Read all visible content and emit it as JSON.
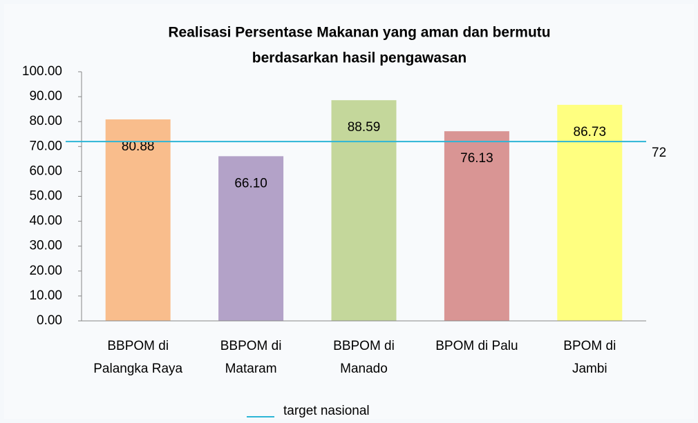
{
  "chart_data": {
    "type": "bar",
    "title": [
      "Realisasi Persentase Makanan yang aman dan bermutu",
      "berdasarkan hasil pengawasan"
    ],
    "categories": [
      [
        "BBPOM di",
        "Palangka Raya"
      ],
      [
        "BBPOM di",
        "Mataram"
      ],
      [
        "BBPOM di",
        "Manado"
      ],
      [
        "BPOM di Palu"
      ],
      [
        "BPOM di",
        "Jambi"
      ]
    ],
    "values": [
      80.88,
      66.1,
      88.59,
      76.13,
      86.73
    ],
    "value_labels": [
      "80.88",
      "66.10",
      "88.59",
      "76.13",
      "86.73"
    ],
    "colors": [
      "#f9bd8c",
      "#b3a2c8",
      "#c4d79b",
      "#d99594",
      "#ffff80"
    ],
    "ylim": [
      0,
      100
    ],
    "yticks": [
      {
        "value": 0,
        "label": "0.00"
      },
      {
        "value": 10,
        "label": "10.00"
      },
      {
        "value": 20,
        "label": "20.00"
      },
      {
        "value": 30,
        "label": "30.00"
      },
      {
        "value": 40,
        "label": "40.00"
      },
      {
        "value": 50,
        "label": "50.00"
      },
      {
        "value": 60,
        "label": "60.00"
      },
      {
        "value": 70,
        "label": "70.00"
      },
      {
        "value": 80,
        "label": "80.00"
      },
      {
        "value": 90,
        "label": "90.00"
      },
      {
        "value": 100,
        "label": "100.00"
      }
    ],
    "target": {
      "name": "target nasional",
      "value": 72,
      "color": "#2cb5d6"
    },
    "legend": "bottom"
  }
}
